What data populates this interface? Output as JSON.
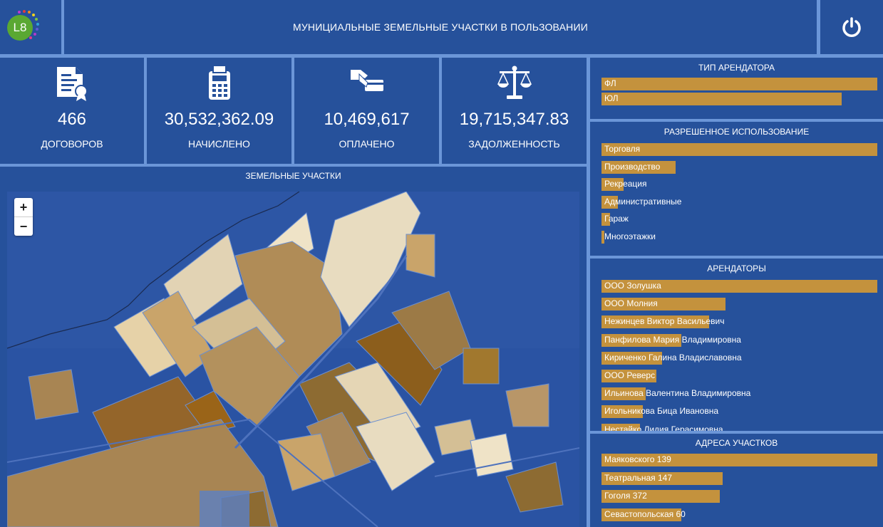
{
  "header": {
    "logo_text": "L8",
    "title": "МУНИЦИАЛЬНЫЕ ЗЕМЕЛЬНЫЕ УЧАСТКИ В ПОЛЬЗОВАНИИ"
  },
  "kpis": [
    {
      "value": "466",
      "label": "ДОГОВОРОВ",
      "icon": "certificate-icon"
    },
    {
      "value": "30,532,362.09",
      "label": "НАЧИСЛЕНО",
      "icon": "calculator-icon"
    },
    {
      "value": "10,469,617",
      "label": "ОПЛАЧЕНО",
      "icon": "payment-card-icon"
    },
    {
      "value": "19,715,347.83",
      "label": "ЗАДОЛЖЕННОСТЬ",
      "icon": "scales-icon"
    }
  ],
  "map": {
    "title": "ЗЕМЕЛЬНЫЕ УЧАСТКИ",
    "zoom_in": "+",
    "zoom_out": "−"
  },
  "tenant_type": {
    "title": "ТИП АРЕНДАТОРА",
    "items": [
      {
        "label": "ФЛ",
        "share": 1.0
      },
      {
        "label": "ЮЛ",
        "share": 0.87
      }
    ]
  },
  "allowed_use": {
    "title": "РАЗРЕШЕННОЕ ИСПОЛЬЗОВАНИЕ",
    "items": [
      {
        "label": "Торговля",
        "share": 1.0
      },
      {
        "label": "Производство",
        "share": 0.27
      },
      {
        "label": "Рекреация",
        "share": 0.08
      },
      {
        "label": "Административные",
        "share": 0.06
      },
      {
        "label": "Гараж",
        "share": 0.03
      },
      {
        "label": "Многоэтажки",
        "share": 0.01
      }
    ]
  },
  "tenants": {
    "title": "АРЕНДАТОРЫ",
    "items": [
      {
        "label": "ООО Золушка",
        "share": 1.0
      },
      {
        "label": "ООО Молния",
        "share": 0.45
      },
      {
        "label": "Нежинцев Виктор Васильевич",
        "share": 0.39
      },
      {
        "label": "Панфилова Мария Владимировна",
        "share": 0.29
      },
      {
        "label": "Кириченко Галина Владиславовна",
        "share": 0.22
      },
      {
        "label": "ООО Реверс",
        "share": 0.2
      },
      {
        "label": "Ильинова Валентина Владимировна",
        "share": 0.16
      },
      {
        "label": "Игольникова Бица Ивановна",
        "share": 0.15
      },
      {
        "label": "Нестайко Лидия Герасимовна",
        "share": 0.14
      }
    ]
  },
  "addresses": {
    "title": "АДРЕСА УЧАСТКОВ",
    "items": [
      {
        "label": "Маяковского 139",
        "share": 1.0
      },
      {
        "label": "Театральная 147",
        "share": 0.44
      },
      {
        "label": "Гоголя 372",
        "share": 0.43
      },
      {
        "label": "Севастопольская 60",
        "share": 0.29
      }
    ]
  }
}
